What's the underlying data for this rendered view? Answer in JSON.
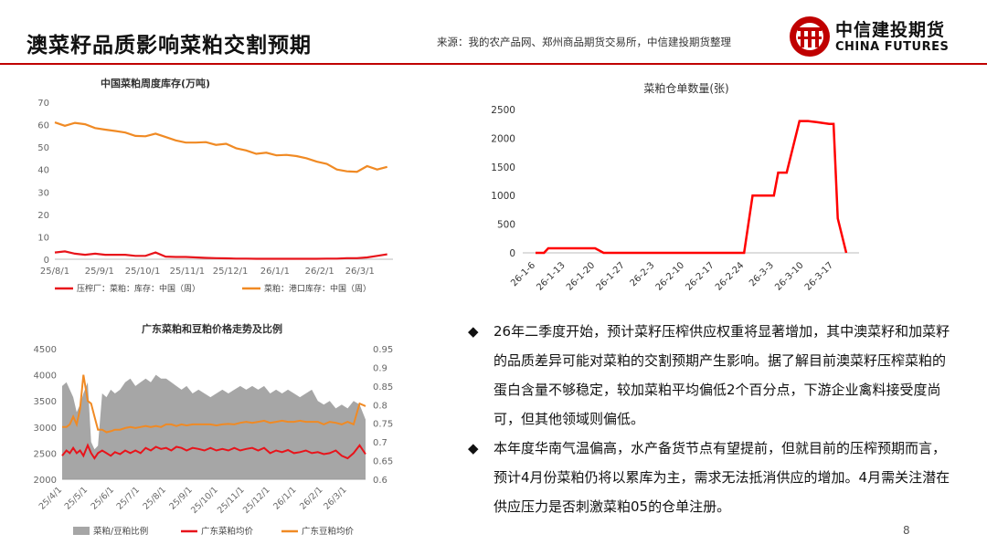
{
  "header": {
    "title": "澳菜籽品质影响菜粕交割预期",
    "source": "来源：我的农产品网、郑州商品期货交易所，中信建投期货整理",
    "logo_cn": "中信建投期货",
    "logo_en": "CHINA FUTURES"
  },
  "colors": {
    "accent": "#c00000",
    "red": "#e8141b",
    "orange": "#f08a24",
    "gray": "#a6a6a6"
  },
  "chart_data": [
    {
      "type": "line",
      "title": "中国菜粕周度库存(万吨)",
      "y_ticks": [
        "0",
        "10",
        "20",
        "30",
        "40",
        "50",
        "60",
        "70"
      ],
      "ylim": [
        0,
        70
      ],
      "x_ticks": [
        "25/8/1",
        "25/9/1",
        "25/10/1",
        "25/11/1",
        "25/12/1",
        "26/1/1",
        "26/2/1",
        "26/3/1"
      ],
      "x_dates": [
        "2025-08-01",
        "2025-09-01",
        "2025-10-01",
        "2025-11-01",
        "2025-12-01",
        "2026-01-01",
        "2026-02-01",
        "2026-03-01"
      ],
      "series": [
        {
          "name": "压榨厂：菜粕：库存：中国（周）",
          "color": "#e8141b",
          "x": [
            "2025-08-01",
            "2025-08-08",
            "2025-08-15",
            "2025-08-22",
            "2025-08-29",
            "2025-09-05",
            "2025-09-12",
            "2025-09-19",
            "2025-09-26",
            "2025-10-03",
            "2025-10-10",
            "2025-10-17",
            "2025-10-24",
            "2025-10-31",
            "2025-11-07",
            "2025-11-14",
            "2025-11-21",
            "2025-11-28",
            "2025-12-05",
            "2025-12-12",
            "2025-12-19",
            "2025-12-26",
            "2026-01-02",
            "2026-01-09",
            "2026-01-16",
            "2026-01-23",
            "2026-01-30",
            "2026-02-06",
            "2026-02-13",
            "2026-02-20",
            "2026-02-27",
            "2026-03-06",
            "2026-03-13",
            "2026-03-20"
          ],
          "values": [
            3,
            3.5,
            2.5,
            2,
            2.5,
            2,
            2,
            2,
            1.5,
            1.5,
            3,
            1.2,
            1,
            1,
            0.8,
            0.6,
            0.5,
            0.4,
            0.3,
            0.3,
            0.2,
            0.2,
            0.2,
            0.2,
            0.2,
            0.2,
            0.2,
            0.3,
            0.3,
            0.5,
            0.5,
            0.8,
            1.5,
            2.2
          ]
        },
        {
          "name": "菜粕：港口库存：中国（周）",
          "color": "#f08a24",
          "x": [
            "2025-08-01",
            "2025-08-08",
            "2025-08-15",
            "2025-08-22",
            "2025-08-29",
            "2025-09-05",
            "2025-09-12",
            "2025-09-19",
            "2025-09-26",
            "2025-10-03",
            "2025-10-10",
            "2025-10-17",
            "2025-10-24",
            "2025-10-31",
            "2025-11-07",
            "2025-11-14",
            "2025-11-21",
            "2025-11-28",
            "2025-12-05",
            "2025-12-12",
            "2025-12-19",
            "2025-12-26",
            "2026-01-02",
            "2026-01-09",
            "2026-01-16",
            "2026-01-23",
            "2026-01-30",
            "2026-02-06",
            "2026-02-13",
            "2026-02-20",
            "2026-02-27",
            "2026-03-06",
            "2026-03-13",
            "2026-03-20"
          ],
          "values": [
            61,
            59.5,
            60.8,
            60.2,
            58.5,
            57.8,
            57.2,
            56.5,
            55,
            54.8,
            56,
            54.5,
            53,
            52,
            52,
            52.2,
            51,
            51.5,
            49.5,
            48.5,
            47,
            47.5,
            46.3,
            46.5,
            46,
            45,
            43.5,
            42.5,
            40,
            39.2,
            39,
            41.5,
            40,
            41.2
          ]
        }
      ]
    },
    {
      "type": "line",
      "title": "菜粕仓单数量(张)",
      "y_ticks": [
        "0",
        "500",
        "1000",
        "1500",
        "2000",
        "2500"
      ],
      "ylim": [
        0,
        2500
      ],
      "x_ticks": [
        "26-1-6",
        "26-1-13",
        "26-1-20",
        "26-1-27",
        "26-2-3",
        "26-2-10",
        "26-2-17",
        "26-2-24",
        "26-3-3",
        "26-3-10",
        "26-3-17"
      ],
      "series": [
        {
          "name": "菜粕仓单数量",
          "color": "#ff0000",
          "x": [
            "2026-01-06",
            "2026-01-08",
            "2026-01-09",
            "2026-01-12",
            "2026-01-16",
            "2026-01-20",
            "2026-01-22",
            "2026-01-27",
            "2026-02-03",
            "2026-02-10",
            "2026-02-17",
            "2026-02-24",
            "2026-02-26",
            "2026-02-27",
            "2026-03-03",
            "2026-03-04",
            "2026-03-05",
            "2026-03-06",
            "2026-03-09",
            "2026-03-10",
            "2026-03-11",
            "2026-03-13",
            "2026-03-16",
            "2026-03-17",
            "2026-03-18",
            "2026-03-20"
          ],
          "values": [
            0,
            0,
            80,
            80,
            80,
            80,
            0,
            0,
            0,
            0,
            0,
            0,
            1000,
            1000,
            1000,
            1400,
            1400,
            1400,
            2300,
            2300,
            2300,
            2280,
            2250,
            2250,
            600,
            0
          ]
        }
      ]
    },
    {
      "type": "area",
      "title": "广东菜粕和豆粕价格走势及比例",
      "y_ticks": [
        "2000",
        "2500",
        "3000",
        "3500",
        "4000",
        "4500"
      ],
      "y2_ticks": [
        "0.6",
        "0.65",
        "0.7",
        "0.75",
        "0.8",
        "0.85",
        "0.9",
        "0.95"
      ],
      "ylim": [
        2000,
        4500
      ],
      "y2lim": [
        0.6,
        0.95
      ],
      "x_ticks": [
        "25/4/1",
        "25/5/1",
        "25/6/1",
        "25/7/1",
        "25/8/1",
        "25/9/1",
        "25/10/1",
        "25/11/1",
        "25/12/1",
        "26/1/1",
        "26/2/1",
        "26/3/1"
      ],
      "series": [
        {
          "name": "菜粕/豆粕比例",
          "color": "#a6a6a6",
          "axis": "right",
          "x": [
            "2025-04-01",
            "2025-04-06",
            "2025-04-10",
            "2025-04-14",
            "2025-04-18",
            "2025-04-22",
            "2025-04-26",
            "2025-05-01",
            "2025-05-05",
            "2025-05-09",
            "2025-05-13",
            "2025-05-18",
            "2025-05-23",
            "2025-05-28",
            "2025-06-02",
            "2025-06-08",
            "2025-06-14",
            "2025-06-20",
            "2025-06-26",
            "2025-07-02",
            "2025-07-08",
            "2025-07-14",
            "2025-07-20",
            "2025-07-26",
            "2025-08-01",
            "2025-08-07",
            "2025-08-13",
            "2025-08-19",
            "2025-08-25",
            "2025-09-01",
            "2025-09-08",
            "2025-09-15",
            "2025-09-22",
            "2025-09-29",
            "2025-10-06",
            "2025-10-13",
            "2025-10-20",
            "2025-10-27",
            "2025-11-03",
            "2025-11-10",
            "2025-11-17",
            "2025-11-24",
            "2025-12-01",
            "2025-12-08",
            "2025-12-15",
            "2025-12-22",
            "2025-12-29",
            "2026-01-05",
            "2026-01-12",
            "2026-01-19",
            "2026-01-26",
            "2026-02-02",
            "2026-02-09",
            "2026-02-16",
            "2026-02-23",
            "2026-03-02",
            "2026-03-09",
            "2026-03-16",
            "2026-03-23"
          ],
          "values": [
            0.85,
            0.86,
            0.84,
            0.82,
            0.78,
            0.8,
            0.83,
            0.86,
            0.7,
            0.68,
            0.69,
            0.83,
            0.82,
            0.84,
            0.83,
            0.84,
            0.86,
            0.87,
            0.85,
            0.86,
            0.87,
            0.86,
            0.88,
            0.87,
            0.87,
            0.86,
            0.85,
            0.84,
            0.85,
            0.83,
            0.84,
            0.83,
            0.82,
            0.83,
            0.84,
            0.83,
            0.84,
            0.85,
            0.84,
            0.85,
            0.84,
            0.85,
            0.83,
            0.84,
            0.83,
            0.84,
            0.83,
            0.82,
            0.83,
            0.84,
            0.81,
            0.8,
            0.81,
            0.79,
            0.8,
            0.79,
            0.81,
            0.8,
            0.76
          ]
        },
        {
          "name": "广东菜粕均价",
          "color": "#e8141b",
          "axis": "left",
          "x": [
            "2025-04-01",
            "2025-04-06",
            "2025-04-10",
            "2025-04-14",
            "2025-04-18",
            "2025-04-22",
            "2025-04-26",
            "2025-05-01",
            "2025-05-05",
            "2025-05-09",
            "2025-05-13",
            "2025-05-18",
            "2025-05-23",
            "2025-05-28",
            "2025-06-02",
            "2025-06-08",
            "2025-06-14",
            "2025-06-20",
            "2025-06-26",
            "2025-07-02",
            "2025-07-08",
            "2025-07-14",
            "2025-07-20",
            "2025-07-26",
            "2025-08-01",
            "2025-08-07",
            "2025-08-13",
            "2025-08-19",
            "2025-08-25",
            "2025-09-01",
            "2025-09-08",
            "2025-09-15",
            "2025-09-22",
            "2025-09-29",
            "2025-10-06",
            "2025-10-13",
            "2025-10-20",
            "2025-10-27",
            "2025-11-03",
            "2025-11-10",
            "2025-11-17",
            "2025-11-24",
            "2025-12-01",
            "2025-12-08",
            "2025-12-15",
            "2025-12-22",
            "2025-12-29",
            "2026-01-05",
            "2026-01-12",
            "2026-01-19",
            "2026-01-26",
            "2026-02-02",
            "2026-02-09",
            "2026-02-16",
            "2026-02-23",
            "2026-03-02",
            "2026-03-09",
            "2026-03-16",
            "2026-03-23"
          ],
          "values": [
            2450,
            2550,
            2500,
            2600,
            2500,
            2550,
            2450,
            2650,
            2500,
            2400,
            2500,
            2550,
            2500,
            2450,
            2520,
            2480,
            2550,
            2500,
            2550,
            2500,
            2600,
            2550,
            2620,
            2580,
            2600,
            2550,
            2620,
            2600,
            2550,
            2600,
            2580,
            2550,
            2600,
            2550,
            2580,
            2550,
            2600,
            2550,
            2580,
            2600,
            2550,
            2600,
            2500,
            2550,
            2520,
            2560,
            2500,
            2520,
            2550,
            2500,
            2520,
            2480,
            2500,
            2550,
            2450,
            2400,
            2500,
            2650,
            2480
          ]
        },
        {
          "name": "广东豆粕均价",
          "color": "#f08a24",
          "axis": "left",
          "x": [
            "2025-04-01",
            "2025-04-06",
            "2025-04-10",
            "2025-04-14",
            "2025-04-18",
            "2025-04-22",
            "2025-04-26",
            "2025-05-01",
            "2025-05-05",
            "2025-05-09",
            "2025-05-13",
            "2025-05-18",
            "2025-05-23",
            "2025-05-28",
            "2025-06-02",
            "2025-06-08",
            "2025-06-14",
            "2025-06-20",
            "2025-06-26",
            "2025-07-02",
            "2025-07-08",
            "2025-07-14",
            "2025-07-20",
            "2025-07-26",
            "2025-08-01",
            "2025-08-07",
            "2025-08-13",
            "2025-08-19",
            "2025-08-25",
            "2025-09-01",
            "2025-09-08",
            "2025-09-15",
            "2025-09-22",
            "2025-09-29",
            "2025-10-06",
            "2025-10-13",
            "2025-10-20",
            "2025-10-27",
            "2025-11-03",
            "2025-11-10",
            "2025-11-17",
            "2025-11-24",
            "2025-12-01",
            "2025-12-08",
            "2025-12-15",
            "2025-12-22",
            "2025-12-29",
            "2026-01-05",
            "2026-01-12",
            "2026-01-19",
            "2026-01-26",
            "2026-02-02",
            "2026-02-09",
            "2026-02-16",
            "2026-02-23",
            "2026-03-02",
            "2026-03-09",
            "2026-03-16",
            "2026-03-23"
          ],
          "values": [
            3000,
            3000,
            3050,
            3200,
            3050,
            3350,
            4000,
            3500,
            3450,
            3200,
            2950,
            2950,
            2900,
            2920,
            2950,
            2950,
            2980,
            3000,
            2980,
            3000,
            3020,
            3000,
            3020,
            3000,
            3050,
            3050,
            3020,
            3050,
            3030,
            3050,
            3050,
            3050,
            3050,
            3030,
            3050,
            3060,
            3050,
            3080,
            3100,
            3080,
            3100,
            3120,
            3080,
            3100,
            3120,
            3100,
            3100,
            3120,
            3100,
            3100,
            3100,
            3050,
            3100,
            3080,
            3050,
            3100,
            3050,
            3450,
            3400
          ]
        }
      ]
    }
  ],
  "bullets": [
    "26年二季度开始，预计菜籽压榨供应权重将显著增加，其中澳菜籽和加菜籽的品质差异可能对菜粕的交割预期产生影响。据了解目前澳菜籽压榨菜粕的蛋白含量不够稳定，较加菜粕平均偏低2个百分点，下游企业禽料接受度尚可，但其他领域则偏低。",
    "本年度华南气温偏高，水产备货节点有望提前，但就目前的压榨预期而言，预计4月份菜粕仍将以累库为主，需求无法抵消供应的增加。4月需关注潜在供应压力是否刺激菜粕05的仓单注册。"
  ],
  "bullet_mark": "◆",
  "page_number": "8"
}
